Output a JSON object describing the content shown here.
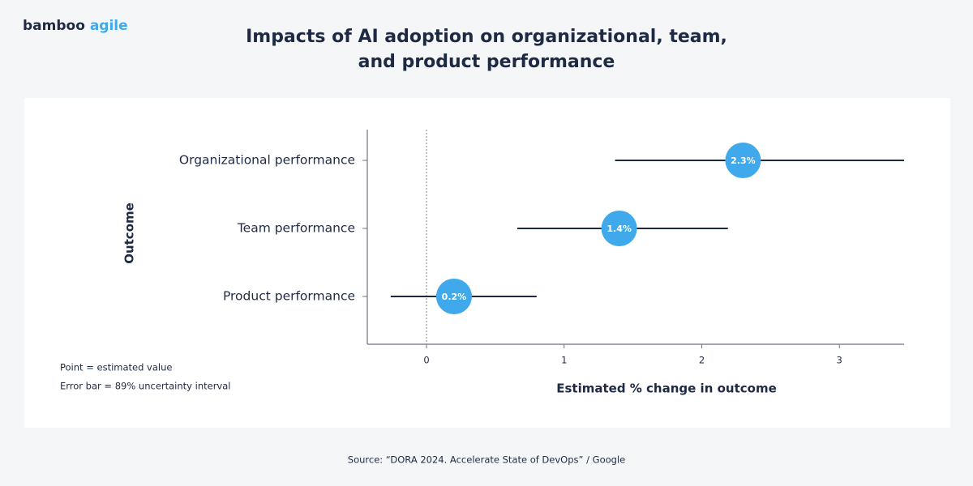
{
  "brand": {
    "first": "bamboo",
    "second": "agile"
  },
  "chart_data": {
    "type": "interval",
    "title": [
      "Impacts of AI adoption on organizational, team,",
      "and product performance"
    ],
    "categories": [
      "Organizational performance",
      "Team performance",
      "Product performance"
    ],
    "values": [
      2.3,
      1.4,
      0.2
    ],
    "value_labels": [
      "2.3%",
      "1.4%",
      "0.2%"
    ],
    "lower": [
      1.37,
      0.66,
      -0.26
    ],
    "upper": [
      3.47,
      2.19,
      0.8
    ],
    "color": "#3fa9ec",
    "xlim": [
      -0.43,
      3.47
    ],
    "xticks": [
      0,
      1,
      2,
      3
    ],
    "xlabel": "Estimated % change in outcome",
    "ylabel": "Outcome",
    "notes": [
      "Point = estimated value",
      "Error bar = 89% uncertainty interval"
    ]
  },
  "source": "Source: “DORA 2024. Accelerate State of DevOps” / Google"
}
